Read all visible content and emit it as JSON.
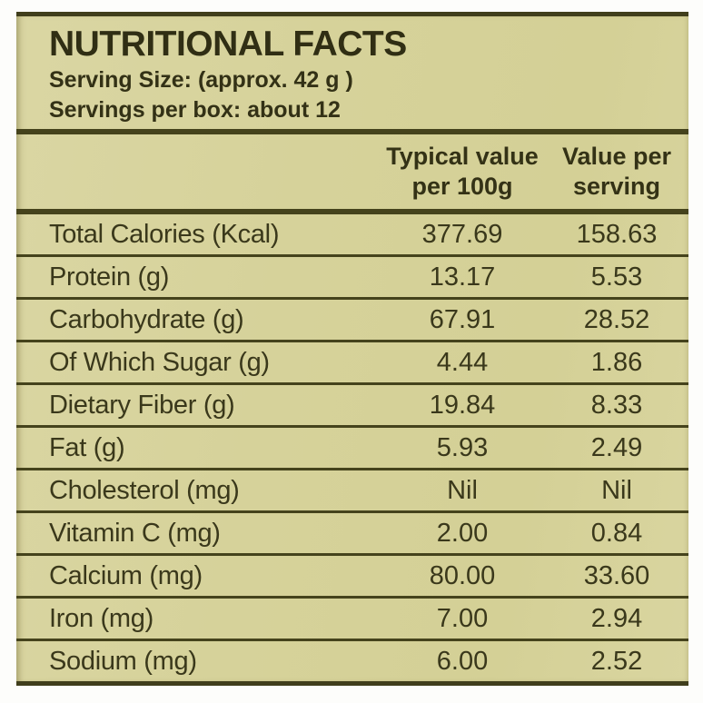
{
  "label": {
    "title": "NUTRITIONAL FACTS",
    "serving_size": "Serving Size: (approx. 42 g )",
    "servings_per_box": "Servings per box: about 12"
  },
  "table": {
    "col1_header_line1": "Typical value",
    "col1_header_line2": "per 100g",
    "col2_header_line1": "Value per",
    "col2_header_line2": "serving",
    "rows": [
      {
        "label": "Total Calories (Kcal)",
        "per_100g": "377.69",
        "per_serving": "158.63"
      },
      {
        "label": "Protein (g)",
        "per_100g": "13.17",
        "per_serving": "5.53"
      },
      {
        "label": "Carbohydrate (g)",
        "per_100g": "67.91",
        "per_serving": "28.52"
      },
      {
        "label": "Of Which Sugar (g)",
        "per_100g": "4.44",
        "per_serving": "1.86"
      },
      {
        "label": "Dietary Fiber (g)",
        "per_100g": "19.84",
        "per_serving": "8.33"
      },
      {
        "label": "Fat (g)",
        "per_100g": "5.93",
        "per_serving": "2.49"
      },
      {
        "label": "Cholesterol (mg)",
        "per_100g": "Nil",
        "per_serving": "Nil"
      },
      {
        "label": "Vitamin C (mg)",
        "per_100g": "2.00",
        "per_serving": "0.84"
      },
      {
        "label": "Calcium (mg)",
        "per_100g": "80.00",
        "per_serving": "33.60"
      },
      {
        "label": "Iron (mg)",
        "per_100g": "7.00",
        "per_serving": "2.94"
      },
      {
        "label": "Sodium (mg)",
        "per_100g": "6.00",
        "per_serving": "2.52"
      }
    ]
  },
  "colors": {
    "label_background": "#d6d29a",
    "rule_line": "#45431c",
    "text": "#383618",
    "page_background": "#fdfdfb"
  }
}
